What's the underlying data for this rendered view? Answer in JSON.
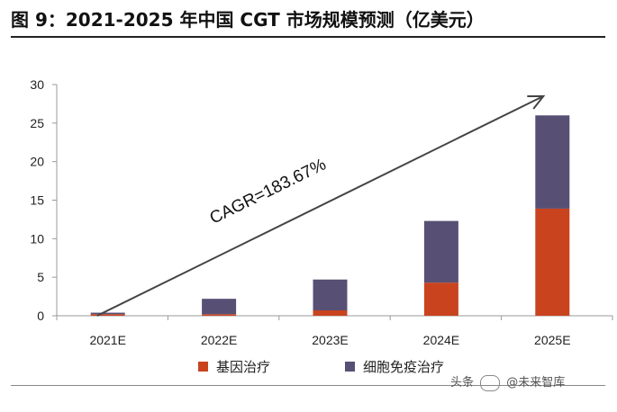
{
  "title": "图 9：2021-2025 年中国 CGT 市场规模预测（亿美元）",
  "watermark": {
    "text_a": "头条",
    "text_b": "@未来智库",
    "brand": "未来智库"
  },
  "chart_data": {
    "type": "bar",
    "stacked": true,
    "categories": [
      "2021E",
      "2022E",
      "2023E",
      "2024E",
      "2025E"
    ],
    "series": [
      {
        "name": "基因治疗",
        "values": [
          0.2,
          0.2,
          0.7,
          4.3,
          13.9
        ],
        "color": "#c9431f"
      },
      {
        "name": "细胞免疫治疗",
        "values": [
          0.2,
          2.0,
          4.0,
          8.0,
          12.1
        ],
        "color": "#575074"
      }
    ],
    "ylim": [
      0,
      30
    ],
    "yticks": [
      0,
      5,
      10,
      15,
      20,
      25,
      30
    ],
    "grid": false,
    "legend_position": "bottom",
    "annotation": {
      "text": "CAGR=183.67%",
      "arrow_from": [
        0,
        0
      ],
      "arrow_to": [
        4,
        28.5
      ]
    }
  }
}
